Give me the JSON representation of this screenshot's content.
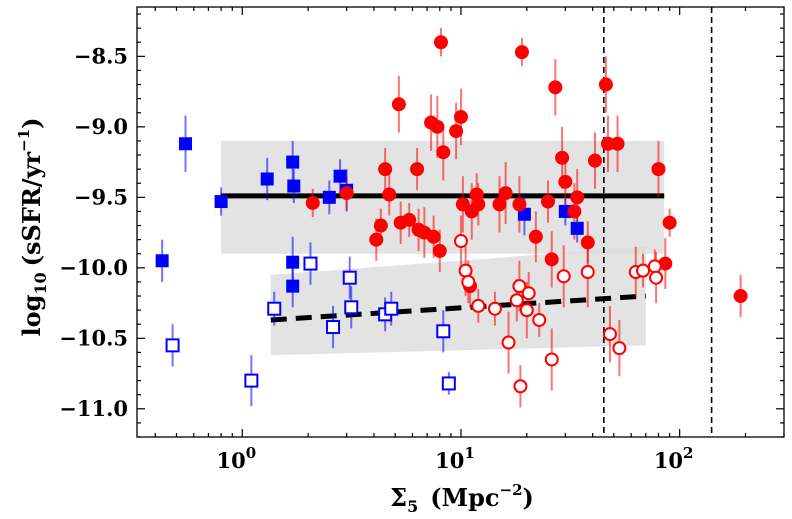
{
  "chart_data": {
    "type": "scatter",
    "xscale": "log",
    "xlim": [
      0.33,
      300
    ],
    "ylim": [
      -11.2,
      -8.15
    ],
    "xlabel_main": "Σ",
    "xlabel_sub": "5",
    "xlabel_units": "(Mpc",
    "xlabel_exp": "−2",
    "xlabel_close": ")",
    "ylabel_main": "log",
    "ylabel_sub": "10",
    "ylabel_units": "(sSFR/yr",
    "ylabel_exp": "−1",
    "ylabel_close": ")",
    "y_ticks": [
      -8.5,
      -9.0,
      -9.5,
      -10.0,
      -10.5,
      -11.0
    ],
    "y_tick_labels": [
      "−8.5",
      "−9.0",
      "−9.5",
      "−10.0",
      "−10.5",
      "−11.0"
    ],
    "x_tick_bases": [
      "10",
      "10",
      "10"
    ],
    "x_tick_exps": [
      "0",
      "1",
      "2"
    ],
    "x_ticks": [
      1,
      10,
      100
    ],
    "vlines": [
      45,
      140
    ],
    "colors": {
      "blue": "#0000ff",
      "red": "#ff0000",
      "band": "#d9d9d9",
      "fit": "#000000"
    },
    "bands": [
      {
        "name": "upper",
        "x": [
          0.8,
          85
        ],
        "lower": [
          -9.9,
          -9.9
        ],
        "upper": [
          -9.1,
          -9.1
        ]
      },
      {
        "name": "lower",
        "x": [
          1.35,
          70
        ],
        "lower": [
          -10.62,
          -10.55
        ],
        "upper": [
          -10.05,
          -9.85
        ]
      }
    ],
    "fit_lines": [
      {
        "name": "solid",
        "x": [
          0.8,
          85
        ],
        "y": [
          -9.49,
          -9.49
        ],
        "dash": false
      },
      {
        "name": "dashed",
        "x": [
          1.35,
          70
        ],
        "y": [
          -10.37,
          -10.2
        ],
        "dash": true
      }
    ],
    "series": [
      {
        "name": "blue filled squares",
        "marker": "square",
        "filled": true,
        "color": "#0000ff",
        "points": [
          [
            0.43,
            -9.95,
            0.15
          ],
          [
            0.55,
            -9.12,
            0.2
          ],
          [
            0.8,
            -9.53,
            0.1
          ],
          [
            1.3,
            -9.37,
            0.15
          ],
          [
            1.7,
            -9.25,
            0.15
          ],
          [
            1.72,
            -9.42,
            0.12
          ],
          [
            1.7,
            -9.96,
            0.18
          ],
          [
            1.7,
            -10.13,
            0.15
          ],
          [
            2.5,
            -9.5,
            0.12
          ],
          [
            2.8,
            -9.35,
            0.12
          ],
          [
            3.0,
            -9.45,
            0.15
          ],
          [
            19.5,
            -9.62,
            0.15
          ],
          [
            30.0,
            -9.6,
            0.1
          ],
          [
            34.0,
            -9.72,
            0.1
          ]
        ]
      },
      {
        "name": "blue open squares",
        "marker": "square",
        "filled": false,
        "color": "#0000ff",
        "points": [
          [
            0.48,
            -10.55,
            0.15
          ],
          [
            1.1,
            -10.8,
            0.18
          ],
          [
            1.4,
            -10.29,
            0.12
          ],
          [
            2.05,
            -9.97,
            0.15
          ],
          [
            2.6,
            -10.42,
            0.15
          ],
          [
            3.1,
            -10.07,
            0.15
          ],
          [
            3.15,
            -10.28,
            0.15
          ],
          [
            4.5,
            -10.33,
            0.12
          ],
          [
            4.8,
            -10.29,
            0.12
          ],
          [
            8.3,
            -10.45,
            0.15
          ],
          [
            8.8,
            -10.82,
            0.08
          ]
        ]
      },
      {
        "name": "red filled circles",
        "marker": "circle",
        "filled": true,
        "color": "#ff0000",
        "points": [
          [
            2.1,
            -9.54,
            0.1
          ],
          [
            3.0,
            -9.47,
            0.12
          ],
          [
            4.1,
            -9.8,
            0.15
          ],
          [
            4.3,
            -9.7,
            0.12
          ],
          [
            4.5,
            -9.3,
            0.15
          ],
          [
            4.7,
            -9.48,
            0.15
          ],
          [
            5.2,
            -8.84,
            0.2
          ],
          [
            5.3,
            -9.68,
            0.15
          ],
          [
            5.8,
            -9.66,
            0.12
          ],
          [
            6.3,
            -9.3,
            0.15
          ],
          [
            6.4,
            -9.73,
            0.15
          ],
          [
            6.8,
            -9.75,
            0.18
          ],
          [
            7.3,
            -8.97,
            0.2
          ],
          [
            7.5,
            -9.78,
            0.15
          ],
          [
            7.8,
            -9.0,
            0.22
          ],
          [
            8.0,
            -9.88,
            0.15
          ],
          [
            8.1,
            -8.4,
            0.1
          ],
          [
            8.3,
            -9.18,
            0.2
          ],
          [
            9.5,
            -9.03,
            0.2
          ],
          [
            10.0,
            -8.93,
            0.2
          ],
          [
            10.2,
            -9.55,
            0.2
          ],
          [
            11.0,
            -10.13,
            0.15
          ],
          [
            11.2,
            -9.6,
            0.2
          ],
          [
            11.8,
            -9.48,
            0.15
          ],
          [
            12.0,
            -9.55,
            0.15
          ],
          [
            15.0,
            -9.55,
            0.2
          ],
          [
            16.0,
            -9.47,
            0.22
          ],
          [
            18.5,
            -9.55,
            0.2
          ],
          [
            19.0,
            -8.47,
            0.1
          ],
          [
            22.0,
            -9.78,
            0.18
          ],
          [
            25.0,
            -9.53,
            0.15
          ],
          [
            26.0,
            -9.94,
            0.2
          ],
          [
            27.0,
            -8.72,
            0.2
          ],
          [
            29.0,
            -9.22,
            0.22
          ],
          [
            30.0,
            -9.39,
            0.2
          ],
          [
            33.0,
            -9.6,
            0.2
          ],
          [
            34.0,
            -9.5,
            0.2
          ],
          [
            38.0,
            -9.82,
            0.15
          ],
          [
            41.0,
            -9.24,
            0.2
          ],
          [
            46.0,
            -8.7,
            0.2
          ],
          [
            47.0,
            -9.12,
            0.2
          ],
          [
            52.0,
            -9.12,
            0.2
          ],
          [
            80.0,
            -9.3,
            0.2
          ],
          [
            86.0,
            -9.97,
            0.18
          ],
          [
            90.0,
            -9.68,
            0.1
          ],
          [
            190.0,
            -10.2,
            0.15
          ]
        ]
      },
      {
        "name": "red open circles",
        "marker": "circle",
        "filled": false,
        "color": "#ff0000",
        "points": [
          [
            10.0,
            -9.81,
            0.18
          ],
          [
            10.5,
            -10.02,
            0.18
          ],
          [
            10.8,
            -10.1,
            0.15
          ],
          [
            12.0,
            -10.27,
            0.12
          ],
          [
            14.3,
            -10.29,
            0.12
          ],
          [
            16.5,
            -10.53,
            0.22
          ],
          [
            18.0,
            -10.23,
            0.15
          ],
          [
            18.5,
            -10.13,
            0.18
          ],
          [
            18.7,
            -10.84,
            0.15
          ],
          [
            20.0,
            -10.3,
            0.2
          ],
          [
            20.4,
            -10.18,
            0.15
          ],
          [
            22.8,
            -10.37,
            0.12
          ],
          [
            26.0,
            -10.65,
            0.22
          ],
          [
            29.5,
            -10.06,
            0.22
          ],
          [
            38.0,
            -10.03,
            0.25
          ],
          [
            48.0,
            -10.47,
            0.2
          ],
          [
            53.0,
            -10.57,
            0.2
          ],
          [
            63.0,
            -10.03,
            0.18
          ],
          [
            68.0,
            -10.02,
            0.12
          ],
          [
            77.0,
            -9.99,
            0.12
          ],
          [
            78.0,
            -10.07,
            0.18
          ]
        ]
      }
    ]
  }
}
